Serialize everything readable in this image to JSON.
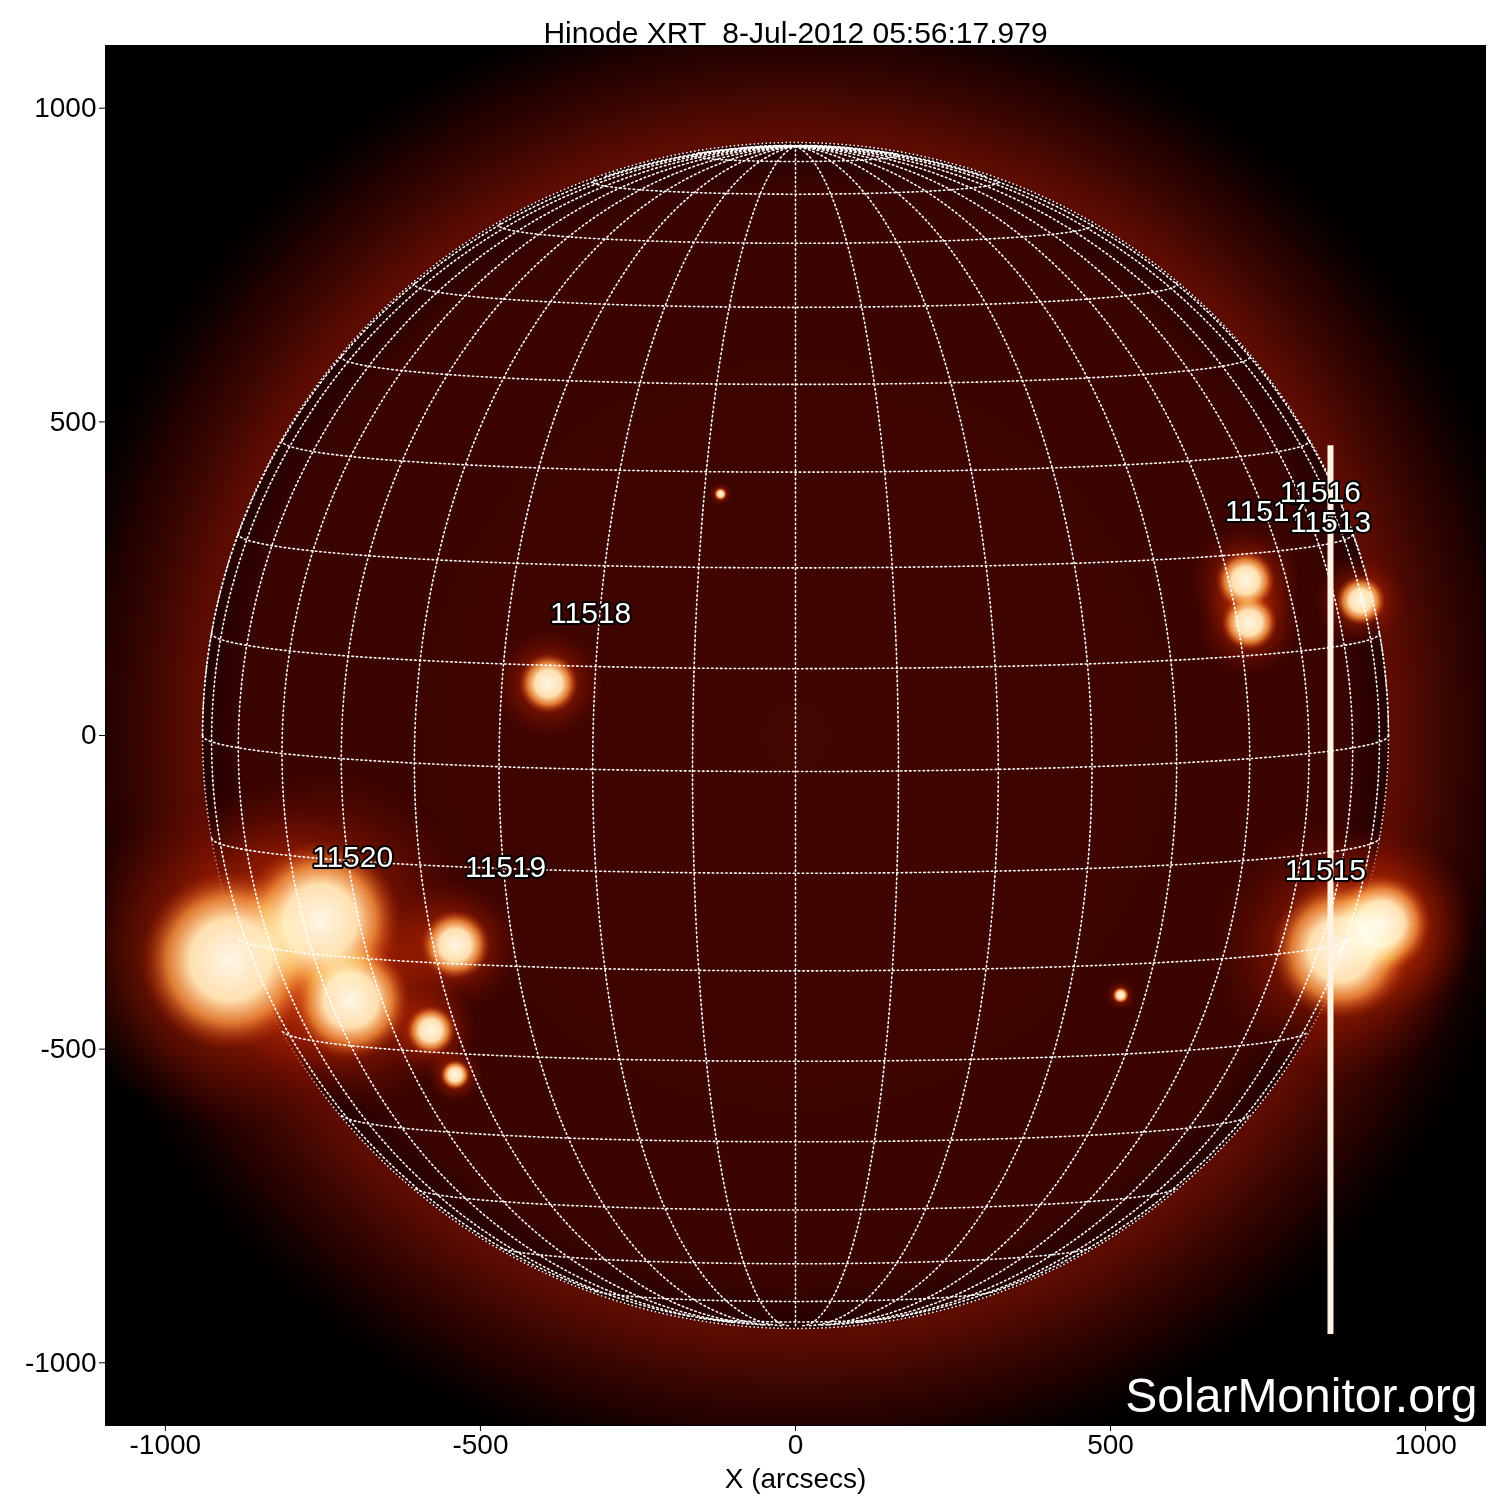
{
  "chart_data": {
    "type": "solar_image",
    "title": "Hinode XRT  8-Jul-2012 05:56:17.979",
    "x_label": "X (arcsecs)",
    "xlim": [
      -1095,
      1095
    ],
    "ylim": [
      -1100,
      1100
    ],
    "xticks": [
      -1000,
      -500,
      0,
      500,
      1000
    ],
    "yticks": [
      -1000,
      -500,
      0,
      500,
      1000
    ],
    "grid": true,
    "watermark": "SolarMonitor.org",
    "disk": {
      "radius": 941,
      "b0": 3.5,
      "grid_step": 10
    },
    "regions": [
      {
        "label": "11520",
        "x": -703,
        "y": -194
      },
      {
        "label": "11519",
        "x": -460,
        "y": -210
      },
      {
        "label": "11518",
        "x": -325,
        "y": 194
      },
      {
        "label": "11517",
        "x": 746,
        "y": 358
      },
      {
        "label": "11516",
        "x": 833,
        "y": 387
      },
      {
        "label": "11513",
        "x": 849,
        "y": 339
      },
      {
        "label": "11515",
        "x": 841,
        "y": -215
      }
    ],
    "emission": [
      {
        "x": -897,
        "y": -358,
        "r": 143
      },
      {
        "x": -754,
        "y": -295,
        "r": 127
      },
      {
        "x": -706,
        "y": -422,
        "r": 95
      },
      {
        "x": -540,
        "y": -334,
        "r": 56
      },
      {
        "x": -579,
        "y": -470,
        "r": 40
      },
      {
        "x": -540,
        "y": -541,
        "r": 24
      },
      {
        "x": -392,
        "y": 83,
        "r": 48
      },
      {
        "x": 714,
        "y": 247,
        "r": 48
      },
      {
        "x": 720,
        "y": 180,
        "r": 45
      },
      {
        "x": 897,
        "y": 215,
        "r": 40
      },
      {
        "x": 865,
        "y": -342,
        "r": 111
      },
      {
        "x": 930,
        "y": -300,
        "r": 80
      },
      {
        "x": 516,
        "y": -414,
        "r": 13
      },
      {
        "x": -119,
        "y": 385,
        "r": 10
      }
    ],
    "streak": {
      "x": 849,
      "y": [
        -955,
        462
      ]
    }
  }
}
